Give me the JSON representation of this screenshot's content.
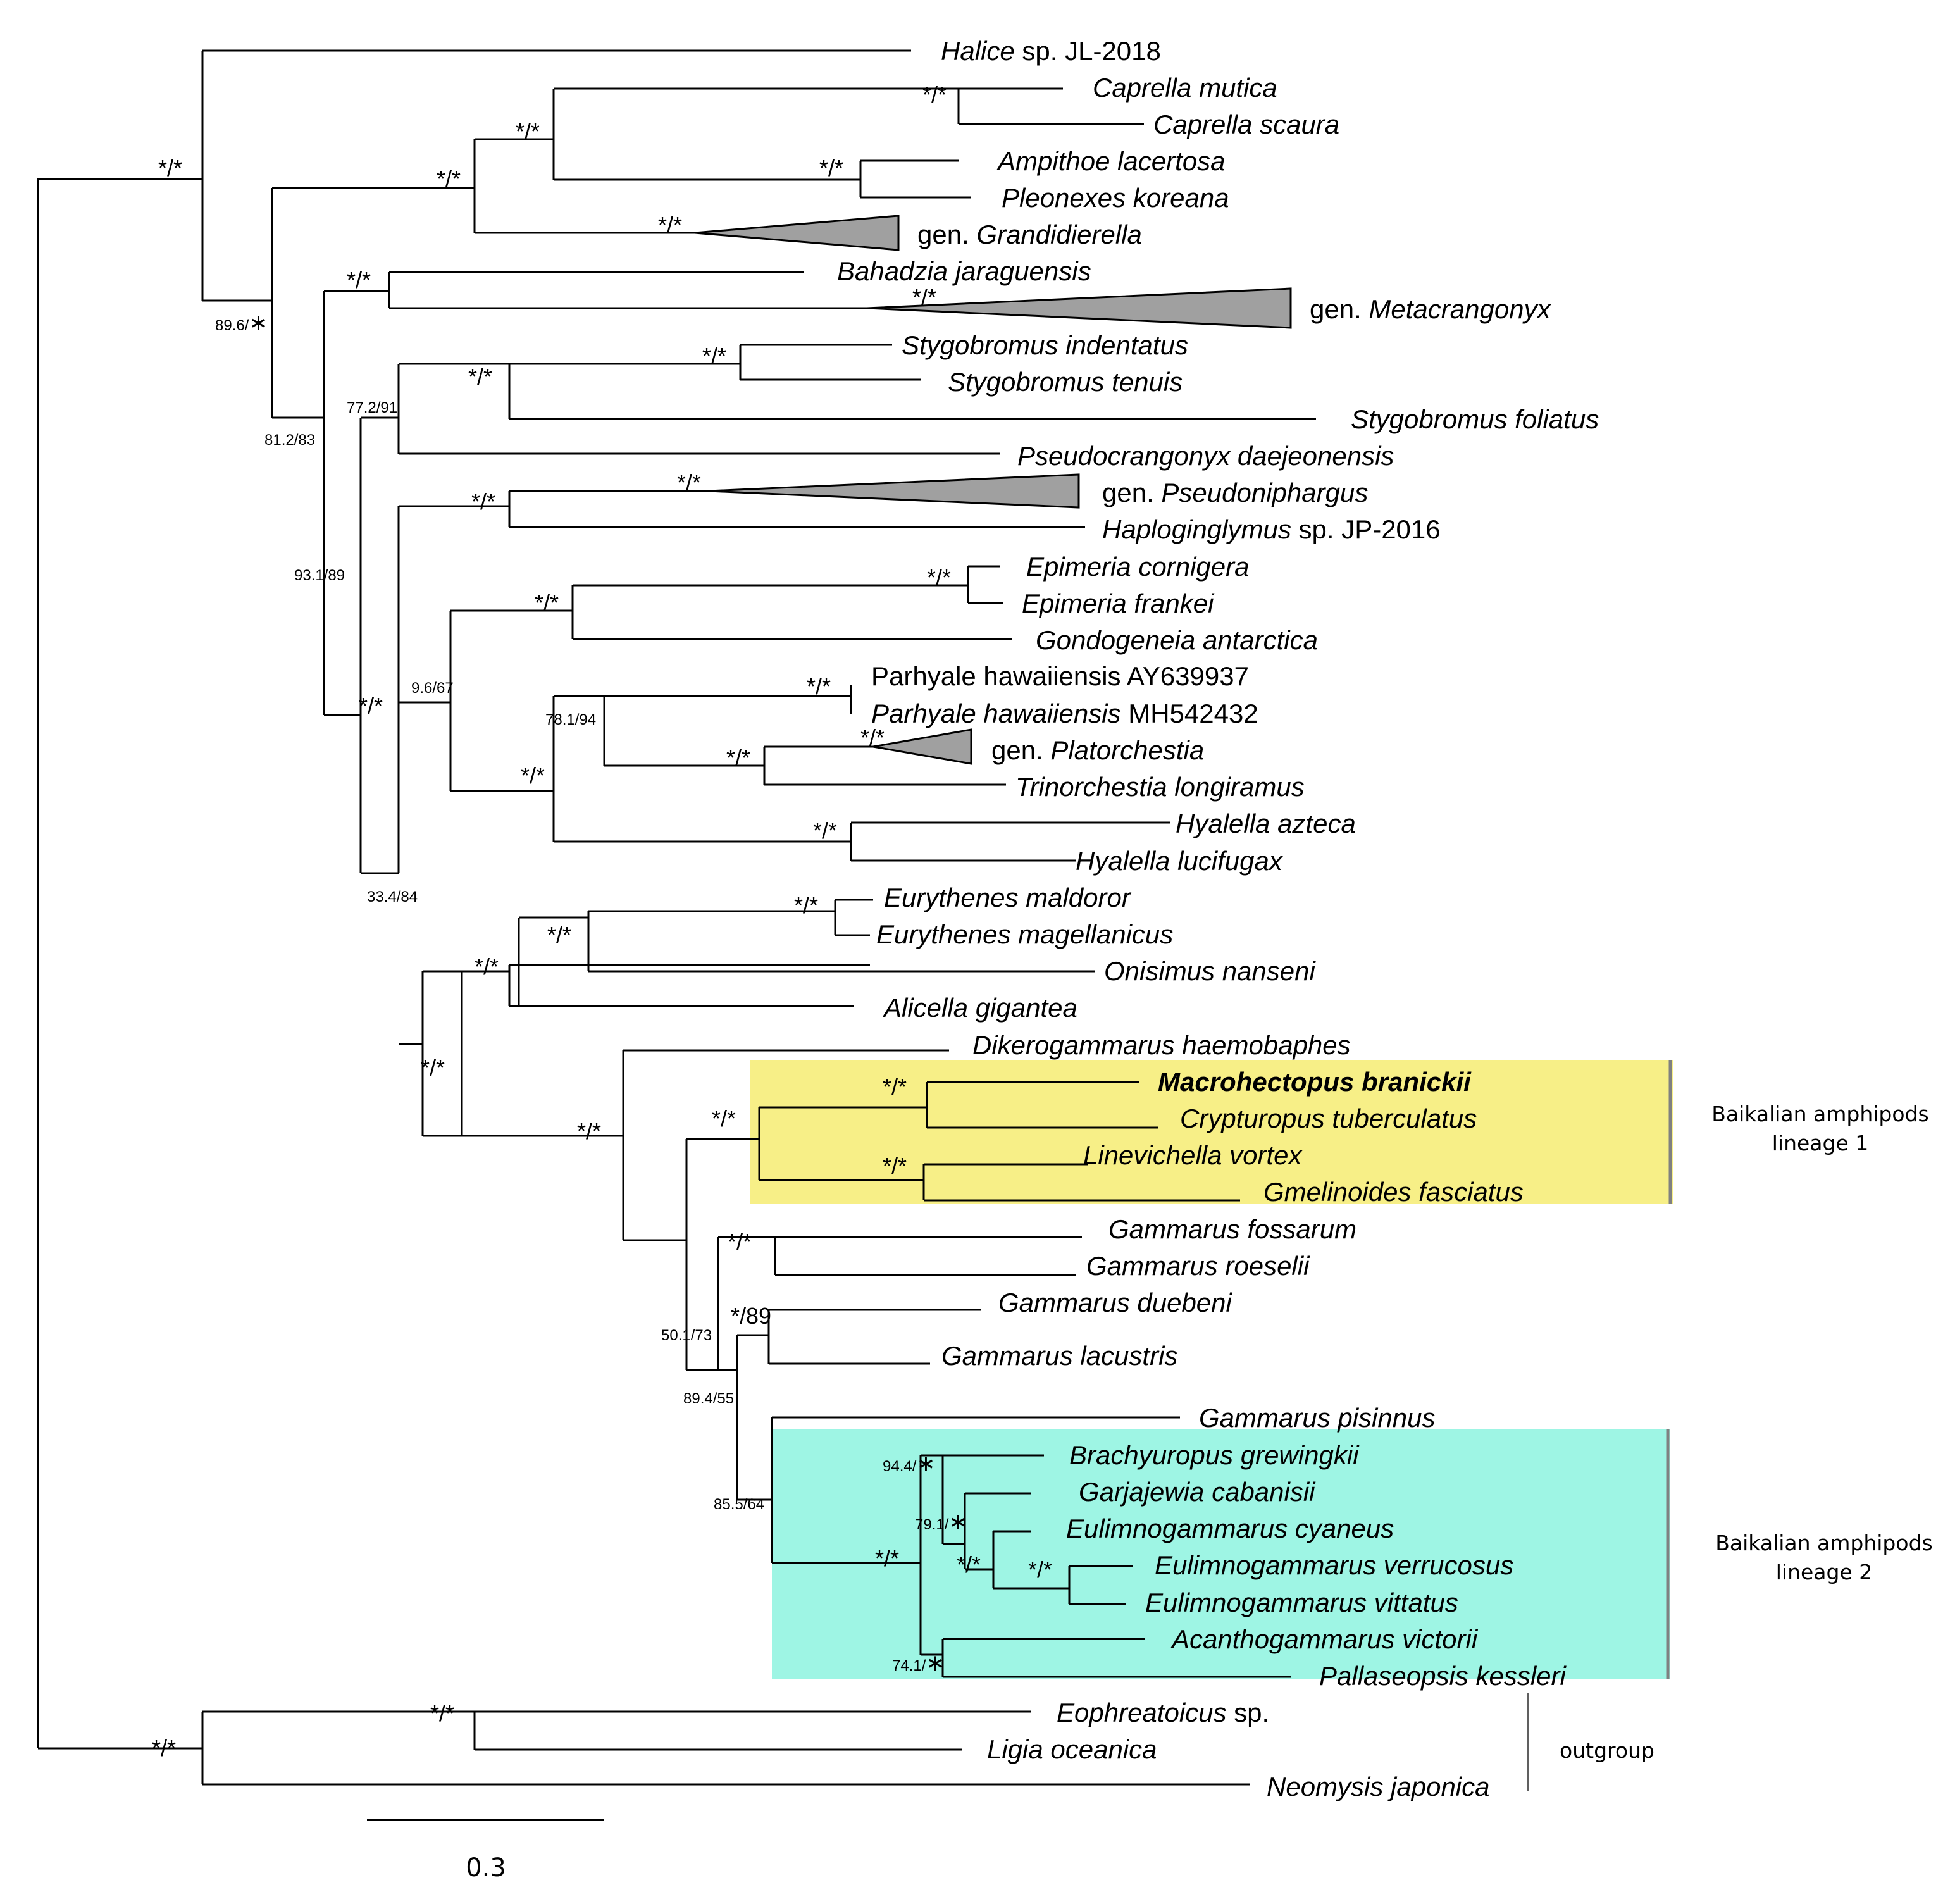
{
  "figure": {
    "title": "",
    "scale_bar_label": "0.3",
    "colors": {
      "branch": "#000000",
      "collapsed_clade": "#a0a0a0",
      "lineage1_box": "#f7ef87",
      "lineage2_box": "#9ef5e4",
      "group_bar": "#808080"
    }
  },
  "tips": [
    {
      "id": "halice",
      "name": "Halice",
      "rest": " sp. JL-2018"
    },
    {
      "id": "caprella_mutica",
      "name": "Caprella mutica"
    },
    {
      "id": "caprella_scaura",
      "name": "Caprella scaura"
    },
    {
      "id": "ampithoe",
      "name": "Ampithoe lacertosa"
    },
    {
      "id": "pleonexes",
      "name": "Pleonexes koreana"
    },
    {
      "id": "grandidierella",
      "prefix": "gen. ",
      "name": "Grandidierella"
    },
    {
      "id": "bahadzia",
      "name": "Bahadzia jaraguensis"
    },
    {
      "id": "metacrangonyx",
      "prefix": "gen. ",
      "name": "Metacrangonyx"
    },
    {
      "id": "stygo_ind",
      "name": "Stygobromus indentatus"
    },
    {
      "id": "stygo_ten",
      "name": "Stygobromus tenuis"
    },
    {
      "id": "stygo_fol",
      "name": "Stygobromus foliatus"
    },
    {
      "id": "pseudocrangonyx",
      "name": "Pseudocrangonyx daejeonensis"
    },
    {
      "id": "pseudoniphargus",
      "prefix": "gen. ",
      "name": "Pseudoniphargus"
    },
    {
      "id": "haploginglymus",
      "name": "Haploginglymus",
      "rest": " sp. JP-2016"
    },
    {
      "id": "epimeria_c",
      "name": "Epimeria cornigera"
    },
    {
      "id": "epimeria_f",
      "name": "Epimeria frankei"
    },
    {
      "id": "gondogeneia",
      "name": "Gondogeneia antarctica"
    },
    {
      "id": "parhyale1",
      "plain": "Parhyale hawaiiensis AY639937"
    },
    {
      "id": "parhyale2",
      "name": "Parhyale hawaiiensis",
      "rest": " MH542432"
    },
    {
      "id": "platorchestia",
      "prefix": "gen. ",
      "name": "Platorchestia"
    },
    {
      "id": "trinorchestia",
      "name": "Trinorchestia longiramus"
    },
    {
      "id": "hyalella_a",
      "name": "Hyalella azteca"
    },
    {
      "id": "hyalella_l",
      "name": "Hyalella lucifugax"
    },
    {
      "id": "eurythenes_m",
      "name": "Eurythenes maldoror"
    },
    {
      "id": "eurythenes_g",
      "name": "Eurythenes magellanicus"
    },
    {
      "id": "onisimus",
      "name": "Onisimus nanseni"
    },
    {
      "id": "alicella",
      "name": "Alicella gigantea"
    },
    {
      "id": "dikerogammarus",
      "name": "Dikerogammarus haemobaphes"
    },
    {
      "id": "macrohectopus",
      "name": "Macrohectopus branickii",
      "bold": true
    },
    {
      "id": "crypturopus",
      "name": "Crypturopus tuberculatus"
    },
    {
      "id": "linevichella",
      "name": "Linevichella vortex"
    },
    {
      "id": "gmelinoides",
      "name": "Gmelinoides fasciatus"
    },
    {
      "id": "g_fossarum",
      "name": "Gammarus fossarum"
    },
    {
      "id": "g_roeselii",
      "name": "Gammarus roeselii"
    },
    {
      "id": "g_duebeni",
      "name": "Gammarus duebeni"
    },
    {
      "id": "g_lacustris",
      "name": "Gammarus lacustris"
    },
    {
      "id": "g_pisinnus",
      "name": "Gammarus pisinnus"
    },
    {
      "id": "brachyuropus",
      "name": "Brachyuropus grewingkii"
    },
    {
      "id": "garjajewia",
      "name": "Garjajewia cabanisii"
    },
    {
      "id": "eul_cyaneus",
      "name": "Eulimnogammarus cyaneus"
    },
    {
      "id": "eul_verrucosus",
      "name": "Eulimnogammarus verrucosus"
    },
    {
      "id": "eul_vittatus",
      "name": "Eulimnogammarus vittatus"
    },
    {
      "id": "acanthogammarus",
      "name": "Acanthogammarus victorii"
    },
    {
      "id": "pallaseopsis",
      "name": "Pallaseopsis kessleri"
    },
    {
      "id": "eophreatoicus",
      "name": "Eophreatoicus",
      "rest": " sp."
    },
    {
      "id": "ligia",
      "name": "Ligia oceanica"
    },
    {
      "id": "neomysis",
      "name": "Neomysis japonica"
    }
  ],
  "supports": [
    {
      "id": "s_root_in",
      "text": "*/*"
    },
    {
      "id": "s_caprella",
      "text": "*/*"
    },
    {
      "id": "s_cap_amp",
      "text": "*/*"
    },
    {
      "id": "s_ampithoe",
      "text": "*/*"
    },
    {
      "id": "s_cap_grand",
      "text": "*/*"
    },
    {
      "id": "s_grand",
      "text": "*/*"
    },
    {
      "id": "s_bahadzia",
      "text": "*/*"
    },
    {
      "id": "s_metacr",
      "text": "*/*"
    },
    {
      "id": "s_stygo_it",
      "text": "*/*"
    },
    {
      "id": "s_stygo",
      "text": "*/*"
    },
    {
      "id": "s_pseudon_int",
      "text": "*/*"
    },
    {
      "id": "s_pseudon",
      "text": "*/*"
    },
    {
      "id": "s_epimeria",
      "text": "*/*"
    },
    {
      "id": "s_epi_gon",
      "text": "*/*"
    },
    {
      "id": "s_parhyale",
      "text": "*/*"
    },
    {
      "id": "s_platorch",
      "text": "*/*"
    },
    {
      "id": "s_platorch_trin",
      "text": "*/*"
    },
    {
      "id": "s_talitrid",
      "text": "*/*"
    },
    {
      "id": "s_hyalella",
      "text": "*/*"
    },
    {
      "id": "s_talit_all",
      "text": "*/*"
    },
    {
      "id": "s_eurythenes",
      "text": "*/*"
    },
    {
      "id": "s_eur_onis",
      "text": "*/*"
    },
    {
      "id": "s_lysian",
      "text": "*/*"
    },
    {
      "id": "s_big",
      "text": "*/*"
    },
    {
      "id": "s_macro",
      "text": "*/*"
    },
    {
      "id": "s_linev",
      "text": "*/*"
    },
    {
      "id": "s_lin1",
      "text": "*/*"
    },
    {
      "id": "s_gam_core",
      "text": "*/*"
    },
    {
      "id": "s_gfos",
      "text": "*/*"
    },
    {
      "id": "s_gdue",
      "text": "*/89"
    },
    {
      "id": "s_lin2",
      "text": "*/*"
    },
    {
      "id": "s_eul_v",
      "text": "*/*"
    },
    {
      "id": "s_eul_cv",
      "text": "*/*"
    },
    {
      "id": "s_out_eo",
      "text": "*/*"
    },
    {
      "id": "s_out",
      "text": "*/*"
    },
    {
      "id": "s_895",
      "text": "89.6/"
    },
    {
      "id": "s_812",
      "text": "81.2/83"
    },
    {
      "id": "s_772",
      "text": "77.2/91"
    },
    {
      "id": "s_931",
      "text": "93.1/89"
    },
    {
      "id": "s_96",
      "text": "9.6/67"
    },
    {
      "id": "s_781",
      "text": "78.1/94"
    },
    {
      "id": "s_334",
      "text": "33.4/84"
    },
    {
      "id": "s_501",
      "text": "50.1/73"
    },
    {
      "id": "s_894",
      "text": "89.4/55"
    },
    {
      "id": "s_855",
      "text": "85.5/64"
    },
    {
      "id": "s_944",
      "text": "94.4/"
    },
    {
      "id": "s_791",
      "text": "79.1/"
    },
    {
      "id": "s_741",
      "text": "74.1/"
    }
  ],
  "groups": [
    {
      "id": "lineage1",
      "line1": "Baikalian amphipods",
      "line2": "lineage 1"
    },
    {
      "id": "lineage2",
      "line1": "Baikalian amphipods",
      "line2": "lineage 2"
    },
    {
      "id": "outgroup",
      "line1": "outgroup"
    }
  ]
}
